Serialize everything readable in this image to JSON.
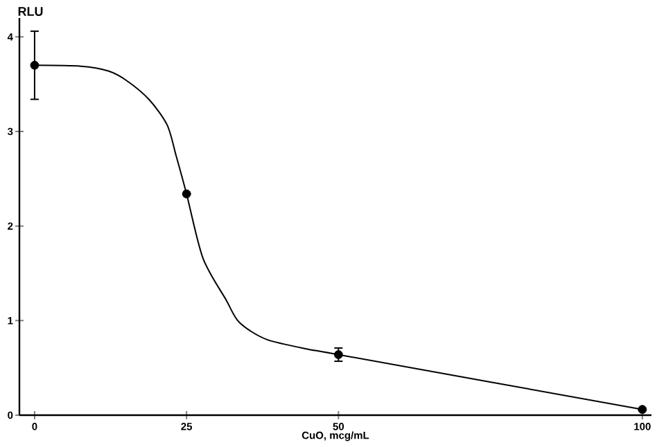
{
  "chart_data": {
    "type": "scatter",
    "xlabel": "CuO, mcg/mL",
    "ylabel": "RLU",
    "xlim": [
      -2.5,
      101.5
    ],
    "ylim": [
      0,
      4.2
    ],
    "xticks": [
      0,
      25,
      50,
      100
    ],
    "yticks": [
      0,
      1,
      2,
      3,
      4
    ],
    "grid": false,
    "series": [
      {
        "color": "#000000",
        "x": [
          0,
          25,
          50,
          100
        ],
        "values": [
          3.7,
          2.34,
          0.64,
          0.06
        ],
        "errors": [
          0.36,
          null,
          0.07,
          null
        ]
      },
      {
        "type": "line",
        "color": "#000000",
        "line_style": "solid",
        "x": [
          0,
          7.6,
          12.1,
          15.1,
          18.8,
          21.8,
          23.3,
          25,
          27.7,
          31.5,
          33.7,
          38.2,
          45.6,
          50,
          100
        ],
        "values": [
          3.7,
          3.69,
          3.64,
          3.54,
          3.34,
          3.07,
          2.74,
          2.34,
          1.66,
          1.22,
          0.98,
          0.8,
          0.69,
          0.64,
          0.06
        ]
      }
    ]
  }
}
